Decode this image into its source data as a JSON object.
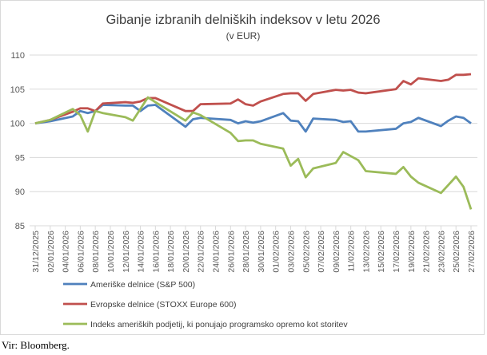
{
  "chart_data": {
    "type": "line",
    "title": "Gibanje izbranih delniških indeksov v letu 2026",
    "subtitle": "(v EUR)",
    "ylim": [
      85,
      110
    ],
    "yticks": [
      85,
      90,
      95,
      100,
      105,
      110
    ],
    "xlim_days": [
      0,
      58
    ],
    "xtick_labels": [
      "31/12/2025",
      "02/01/2026",
      "04/01/2026",
      "06/01/2026",
      "08/01/2026",
      "10/01/2026",
      "12/01/2026",
      "14/01/2026",
      "16/01/2026",
      "18/01/2026",
      "20/01/2026",
      "22/01/2026",
      "24/01/2026",
      "26/01/2026",
      "28/01/2026",
      "30/01/2026",
      "01/02/2026",
      "03/02/2026",
      "05/02/2026",
      "07/02/2026",
      "09/02/2026",
      "11/02/2026",
      "13/02/2026",
      "15/02/2026",
      "17/02/2026",
      "19/02/2026",
      "21/02/2026",
      "23/02/2026",
      "25/02/2026",
      "27/02/2026"
    ],
    "grid": true,
    "legend_position": "bottom",
    "x_days": [
      0,
      2,
      5,
      6,
      7,
      8,
      9,
      12,
      13,
      14,
      15,
      16,
      20,
      21,
      22,
      26,
      27,
      28,
      29,
      30,
      33,
      34,
      35,
      36,
      37,
      40,
      41,
      42,
      43,
      44,
      48,
      49,
      50,
      51,
      54,
      55,
      56,
      57,
      58
    ],
    "series": [
      {
        "name": "Ameriške delnice (S&P 500)",
        "color": "#4f81bd",
        "values": [
          100,
          100.3,
          101,
          101.8,
          101.5,
          101.8,
          102.7,
          102.6,
          102.6,
          101.8,
          102.6,
          102.7,
          99.5,
          100.6,
          100.8,
          100.5,
          100,
          100.3,
          100.1,
          100.3,
          101.5,
          100.4,
          100.3,
          98.8,
          100.7,
          100.5,
          100.2,
          100.3,
          98.8,
          98.8,
          99.2,
          100,
          100.2,
          100.8,
          99.6,
          100.4,
          101,
          100.8,
          100
        ]
      },
      {
        "name": "Evropske delnice (STOXX Europe 600)",
        "color": "#c0504d",
        "values": [
          100,
          100.5,
          101.7,
          102.2,
          102.2,
          101.8,
          102.9,
          103.1,
          103,
          103.2,
          103.7,
          103.7,
          101.8,
          101.8,
          102.8,
          102.9,
          103.5,
          102.8,
          102.6,
          103.2,
          104.3,
          104.4,
          104.4,
          103.3,
          104.3,
          104.9,
          104.8,
          104.9,
          104.5,
          104.4,
          105,
          106.2,
          105.7,
          106.6,
          106.2,
          106.4,
          107.1,
          107.1,
          107.2
        ]
      },
      {
        "name": "Indeks ameriških podjetij, ki ponujajo programsko opremo kot storitev",
        "color": "#9bbb59",
        "values": [
          100,
          100.5,
          102.1,
          101.2,
          98.8,
          101.8,
          101.5,
          100.9,
          100.4,
          102.1,
          103.8,
          103.1,
          100.4,
          101.6,
          101.2,
          98.6,
          97.4,
          97.5,
          97.5,
          97,
          96.3,
          93.8,
          94.8,
          92.1,
          93.4,
          94.2,
          95.8,
          95.2,
          94.6,
          93,
          92.6,
          93.6,
          92.2,
          91.3,
          89.8,
          91,
          92.2,
          90.7,
          87.4
        ]
      }
    ]
  },
  "source": "Vir: Bloomberg."
}
